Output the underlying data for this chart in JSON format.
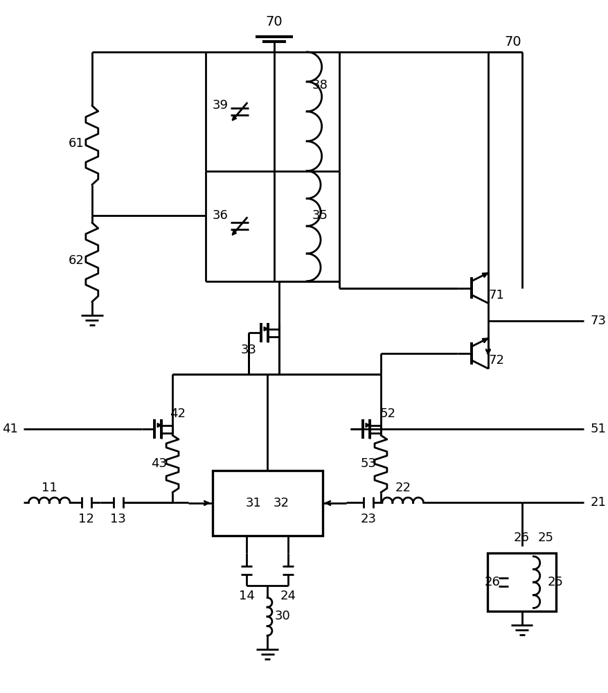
{
  "bg_color": "#ffffff",
  "line_color": "#000000",
  "lw": 2.0
}
